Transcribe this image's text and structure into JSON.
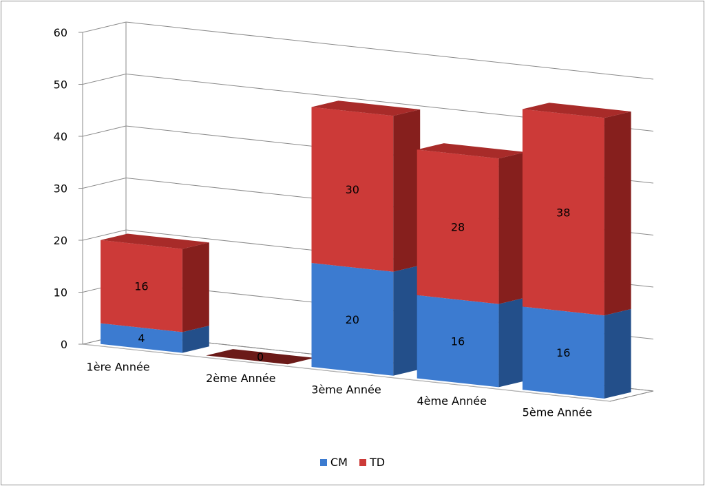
{
  "chart_data": {
    "type": "bar",
    "stacked": true,
    "three_d": true,
    "categories": [
      "1ère Année",
      "2ème Année",
      "3ème Année",
      "4ème Année",
      "5ème Année"
    ],
    "series": [
      {
        "name": "CM",
        "values": [
          4,
          0,
          20,
          16,
          16
        ],
        "color": "#3c7bd0"
      },
      {
        "name": "TD",
        "values": [
          16,
          0,
          30,
          28,
          38
        ],
        "color": "#cc3a38"
      }
    ],
    "data_labels": [
      [
        "4",
        "0",
        "20",
        "16",
        "16"
      ],
      [
        "16",
        "",
        "30",
        "28",
        "38"
      ]
    ],
    "yticks": [
      "0",
      "10",
      "20",
      "30",
      "40",
      "50",
      "60"
    ],
    "ylim": [
      0,
      60
    ],
    "grid": true,
    "legend_position": "bottom"
  }
}
